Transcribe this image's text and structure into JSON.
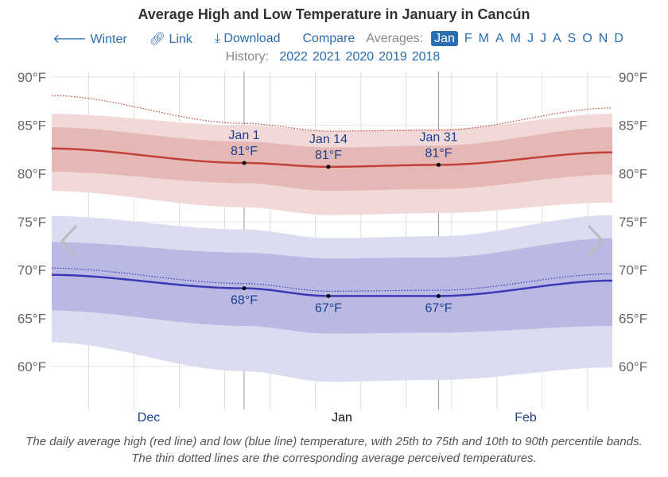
{
  "title": "Average High and Low Temperature in January in Cancún",
  "nav": {
    "back_label": "Winter",
    "link_label": "Link",
    "download_label": "Download",
    "compare_label": "Compare",
    "averages_label": "Averages:",
    "months": [
      "Jan",
      "F",
      "M",
      "A",
      "M",
      "J",
      "J",
      "A",
      "S",
      "O",
      "N",
      "D"
    ],
    "selected_month": "Jan"
  },
  "history": {
    "label": "History:",
    "years": [
      "2022",
      "2021",
      "2020",
      "2019",
      "2018"
    ]
  },
  "caption": "The daily average high (red line) and low (blue line) temperature, with 25th to 75th and 10th to 90th percentile bands. The thin dotted lines are the corresponding average perceived temperatures.",
  "icons": {
    "back": "arrow-left-icon",
    "link": "link-icon",
    "download": "download-icon",
    "prev": "chevron-left-icon",
    "next": "chevron-right-icon"
  },
  "colors": {
    "high": "#c0413a",
    "low": "#3a3ab5",
    "accent": "#2a6db0"
  },
  "chart_data": {
    "type": "area",
    "title": "Average High and Low Temperature in January in Cancún",
    "ylim": [
      57,
      91
    ],
    "yticks": [
      "60°F",
      "65°F",
      "70°F",
      "75°F",
      "80°F",
      "85°F",
      "90°F"
    ],
    "ytick_values": [
      60,
      65,
      70,
      75,
      80,
      85,
      90
    ],
    "x_labels": [
      "Dec",
      "Jan",
      "Feb"
    ],
    "x_days": [
      "Dec 2",
      "Jan 1",
      "Jan 14",
      "Jan 31",
      "Feb 27"
    ],
    "x_day_offsets": [
      -30,
      0,
      13,
      30,
      57
    ],
    "grid": true,
    "series": [
      {
        "key": "high",
        "values": [
          82.6,
          81.1,
          80.7,
          80.9,
          82.2
        ],
        "p25": [
          80.2,
          79.0,
          78.2,
          78.4,
          79.9
        ],
        "p75": [
          84.8,
          83.3,
          82.7,
          82.9,
          84.8
        ],
        "p10": [
          78.2,
          76.5,
          75.7,
          75.9,
          77.0
        ],
        "p90": [
          86.2,
          85.0,
          84.4,
          84.6,
          86.2
        ],
        "perceived": [
          88.1,
          85.2,
          84.4,
          84.5,
          86.8
        ]
      },
      {
        "key": "low",
        "values": [
          69.5,
          68.1,
          67.3,
          67.3,
          68.9
        ],
        "p25": [
          65.8,
          64.2,
          63.4,
          63.5,
          64.2
        ],
        "p75": [
          72.9,
          71.8,
          71.2,
          71.3,
          73.3
        ],
        "p10": [
          62.5,
          59.5,
          58.4,
          58.6,
          59.9
        ],
        "p90": [
          75.6,
          74.2,
          73.3,
          73.5,
          75.7
        ],
        "perceived": [
          70.2,
          68.6,
          67.8,
          67.9,
          69.6
        ]
      }
    ],
    "annotations": [
      {
        "date": "Jan 1",
        "high": "81°F",
        "low": "68°F"
      },
      {
        "date": "Jan 14",
        "high": "81°F",
        "low": "67°F"
      },
      {
        "date": "Jan 31",
        "high": "81°F",
        "low": "67°F"
      }
    ]
  }
}
